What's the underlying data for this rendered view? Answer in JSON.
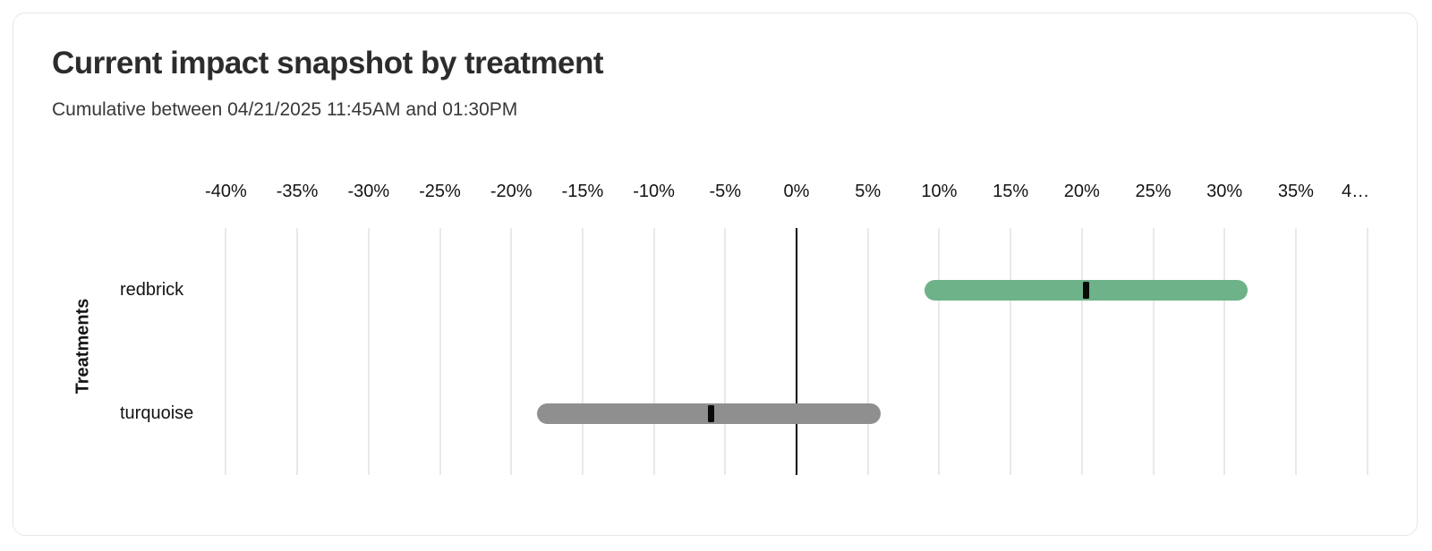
{
  "chart_data": {
    "type": "bar",
    "variant": "horizontal-range-bar-with-point-marker",
    "title": "Current impact snapshot by treatment",
    "subtitle": "Cumulative between 04/21/2025 11:45AM and 01:30PM",
    "xlabel": "",
    "ylabel": "Treatments",
    "x_unit": "%",
    "xlim": [
      -40,
      40
    ],
    "grid": "vertical",
    "zero_line": true,
    "legend": "none",
    "x_ticks": [
      {
        "value": -40,
        "label": "-40%"
      },
      {
        "value": -35,
        "label": "-35%"
      },
      {
        "value": -30,
        "label": "-30%"
      },
      {
        "value": -25,
        "label": "-25%"
      },
      {
        "value": -20,
        "label": "-20%"
      },
      {
        "value": -15,
        "label": "-15%"
      },
      {
        "value": -10,
        "label": "-10%"
      },
      {
        "value": -5,
        "label": "-5%"
      },
      {
        "value": 0,
        "label": "0%"
      },
      {
        "value": 5,
        "label": "5%"
      },
      {
        "value": 10,
        "label": "10%"
      },
      {
        "value": 15,
        "label": "15%"
      },
      {
        "value": 20,
        "label": "20%"
      },
      {
        "value": 25,
        "label": "25%"
      },
      {
        "value": 30,
        "label": "30%"
      },
      {
        "value": 35,
        "label": "35%"
      },
      {
        "value": 40,
        "label": "4…",
        "truncated": true
      }
    ],
    "categories": [
      "redbrick",
      "turquoise"
    ],
    "series": [
      {
        "name": "redbrick",
        "lower_pct": 9.0,
        "point_pct": 20.3,
        "upper_pct": 31.6,
        "color": "#6db288"
      },
      {
        "name": "turquoise",
        "lower_pct": -18.2,
        "point_pct": -6.0,
        "upper_pct": 5.9,
        "color": "#8f8f8f"
      }
    ],
    "colors": {
      "marker": "#0a0a0a",
      "gridline": "#e9e9e9",
      "zero_line": "#000000"
    }
  }
}
